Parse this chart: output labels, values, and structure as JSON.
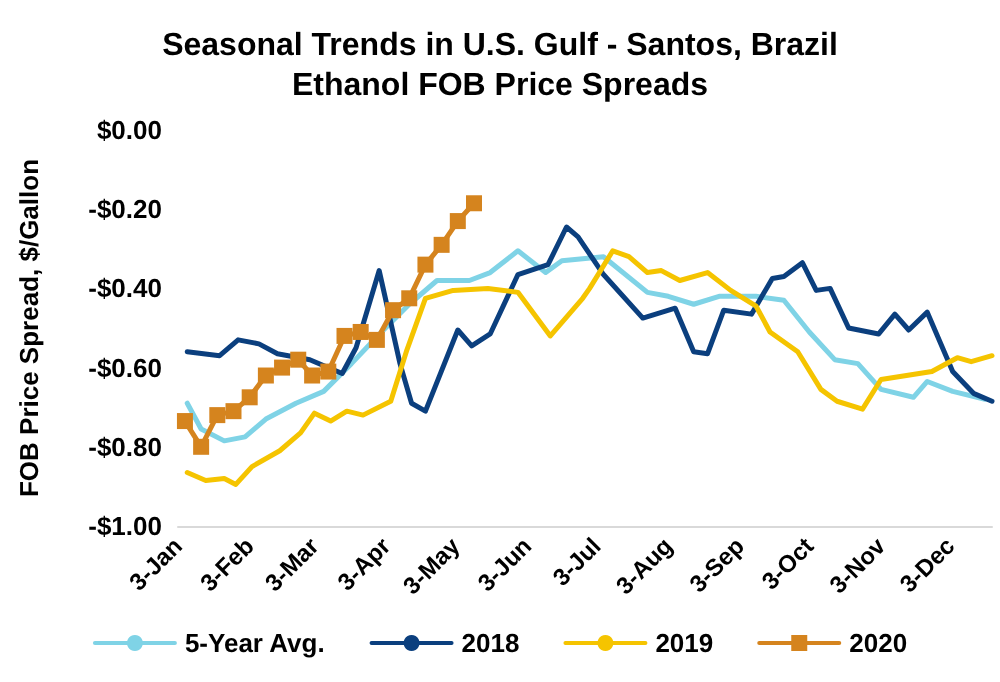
{
  "chart_data": {
    "type": "line",
    "title": "Seasonal Trends in U.S. Gulf - Santos, Brazil\nEthanol FOB Price Spreads",
    "ylabel": "FOB Price Spread, $/Gallon",
    "xlim": [
      "--01-03",
      "--12-21"
    ],
    "xticks": [
      {
        "value": "--01-03",
        "label": "3-Jan"
      },
      {
        "value": "--02-03",
        "label": "3-Feb"
      },
      {
        "value": "--03-03",
        "label": "3-Mar"
      },
      {
        "value": "--04-03",
        "label": "3-Apr"
      },
      {
        "value": "--05-03",
        "label": "3-May"
      },
      {
        "value": "--06-03",
        "label": "3-Jun"
      },
      {
        "value": "--07-03",
        "label": "3-Jul"
      },
      {
        "value": "--08-03",
        "label": "3-Aug"
      },
      {
        "value": "--09-03",
        "label": "3-Sep"
      },
      {
        "value": "--10-03",
        "label": "3-Oct"
      },
      {
        "value": "--11-03",
        "label": "3-Nov"
      },
      {
        "value": "--12-03",
        "label": "3-Dec"
      }
    ],
    "ylim": [
      -1,
      0
    ],
    "yticks": [
      {
        "value": -1,
        "label": "-$1.00"
      },
      {
        "value": -0.8,
        "label": "-$0.80"
      },
      {
        "value": -0.6,
        "label": "-$0.60"
      },
      {
        "value": -0.4,
        "label": "-$0.40"
      },
      {
        "value": -0.2,
        "label": "-$0.20"
      },
      {
        "value": 0,
        "label": "$0.00"
      }
    ],
    "grid": false,
    "legend": "bottom",
    "marker": "none",
    "line_style": "solid",
    "series": [
      {
        "name": "5-Year Avg.",
        "color": "#7fd3e6",
        "x": [
          "--01-07",
          "--01-13",
          "--01-23",
          "--02-01",
          "--02-10",
          "--02-23",
          "--03-07",
          "--03-19",
          "--04-01",
          "--04-13",
          "--04-25",
          "--05-09",
          "--05-18",
          "--05-30",
          "--06-11",
          "--06-18",
          "--07-06",
          "--07-25",
          "--08-03",
          "--08-14",
          "--08-25",
          "--09-10",
          "--09-22",
          "--10-03",
          "--10-14",
          "--10-24",
          "--11-03",
          "--11-17",
          "--11-23",
          "--12-04",
          "--12-18"
        ],
        "values": [
          -0.69,
          -0.755,
          -0.785,
          -0.775,
          -0.73,
          -0.69,
          -0.66,
          -0.59,
          -0.51,
          -0.44,
          -0.38,
          -0.38,
          -0.36,
          -0.305,
          -0.36,
          -0.33,
          -0.32,
          -0.41,
          -0.42,
          -0.44,
          -0.42,
          -0.42,
          -0.43,
          -0.51,
          -0.58,
          -0.59,
          -0.655,
          -0.675,
          -0.635,
          -0.66,
          -0.68
        ]
      },
      {
        "name": "2018",
        "color": "#0b3f7e",
        "x": [
          "--01-07",
          "--01-21",
          "--01-29",
          "--02-07",
          "--02-15",
          "--03-01",
          "--03-15",
          "--03-21",
          "--03-31",
          "--04-09",
          "--04-14",
          "--04-20",
          "--05-04",
          "--05-10",
          "--05-18",
          "--05-30",
          "--06-12",
          "--06-20",
          "--06-25",
          "--07-06",
          "--07-23",
          "--08-06",
          "--08-14",
          "--08-20",
          "--08-27",
          "--09-08",
          "--09-17",
          "--09-22",
          "--09-30",
          "--10-06",
          "--10-12",
          "--10-20",
          "--11-02",
          "--11-09",
          "--11-15",
          "--11-23",
          "--12-04",
          "--12-13",
          "--12-21"
        ],
        "values": [
          -0.56,
          -0.57,
          -0.53,
          -0.54,
          -0.565,
          -0.58,
          -0.615,
          -0.55,
          -0.355,
          -0.59,
          -0.69,
          -0.71,
          -0.505,
          -0.545,
          -0.515,
          -0.365,
          -0.34,
          -0.245,
          -0.27,
          -0.365,
          -0.475,
          -0.45,
          -0.56,
          -0.565,
          -0.455,
          -0.465,
          -0.375,
          -0.37,
          -0.335,
          -0.405,
          -0.4,
          -0.5,
          -0.515,
          -0.465,
          -0.505,
          -0.46,
          -0.61,
          -0.665,
          -0.685
        ]
      },
      {
        "name": "2019",
        "color": "#f5c400",
        "x": [
          "--01-07",
          "--01-15",
          "--01-23",
          "--01-28",
          "--02-04",
          "--02-16",
          "--02-25",
          "--03-03",
          "--03-10",
          "--03-17",
          "--03-24",
          "--04-05",
          "--04-12",
          "--04-20",
          "--05-02",
          "--05-17",
          "--05-30",
          "--06-13",
          "--06-27",
          "--06-30",
          "--07-10",
          "--07-17",
          "--07-25",
          "--07-31",
          "--08-08",
          "--08-20",
          "--08-30",
          "--09-10",
          "--09-16",
          "--09-28",
          "--10-08",
          "--10-15",
          "--10-26",
          "--11-03",
          "--11-14",
          "--11-25",
          "--12-06",
          "--12-12",
          "--12-21"
        ],
        "values": [
          -0.865,
          -0.885,
          -0.88,
          -0.895,
          -0.85,
          -0.81,
          -0.765,
          -0.715,
          -0.735,
          -0.71,
          -0.72,
          -0.685,
          -0.555,
          -0.425,
          -0.405,
          -0.4,
          -0.41,
          -0.52,
          -0.425,
          -0.4,
          -0.305,
          -0.32,
          -0.36,
          -0.355,
          -0.38,
          -0.36,
          -0.405,
          -0.445,
          -0.51,
          -0.56,
          -0.655,
          -0.685,
          -0.705,
          -0.63,
          -0.62,
          -0.61,
          -0.575,
          -0.585,
          -0.57
        ]
      },
      {
        "name": "2020",
        "color": "#d5841e",
        "marker": "square",
        "x": [
          "--01-06",
          "--01-13",
          "--01-20",
          "--01-27",
          "--02-03",
          "--02-10",
          "--02-17",
          "--02-24",
          "--03-02",
          "--03-09",
          "--03-16",
          "--03-23",
          "--03-30",
          "--04-06",
          "--04-13",
          "--04-20",
          "--04-27",
          "--05-04",
          "--05-11"
        ],
        "values": [
          -0.735,
          -0.8,
          -0.72,
          -0.71,
          -0.675,
          -0.62,
          -0.6,
          -0.58,
          -0.62,
          -0.61,
          -0.52,
          -0.51,
          -0.53,
          -0.455,
          -0.425,
          -0.34,
          -0.29,
          -0.23,
          -0.185
        ]
      }
    ]
  }
}
